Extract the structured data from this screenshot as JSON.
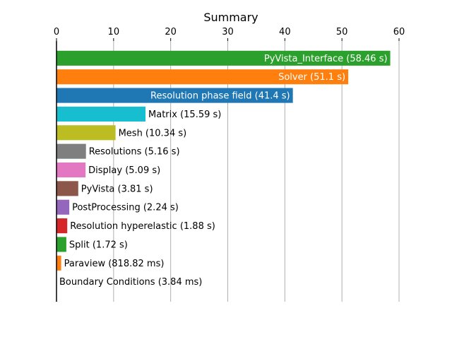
{
  "chart_data": {
    "type": "bar",
    "orientation": "horizontal",
    "title": "Summary",
    "xlim": [
      0,
      60
    ],
    "x_ticks": [
      0,
      10,
      20,
      30,
      40,
      50,
      60
    ],
    "x_axis_position": "top",
    "grid": "vertical",
    "bars": [
      {
        "category": "PyVista_Interface",
        "value": 58.46,
        "label": "PyVista_Interface (58.46 s)",
        "color": "#2ca02c",
        "label_inside": true
      },
      {
        "category": "Solver",
        "value": 51.1,
        "label": "Solver (51.1 s)",
        "color": "#ff7f0e",
        "label_inside": true
      },
      {
        "category": "Resolution phase field",
        "value": 41.4,
        "label": "Resolution phase field (41.4 s)",
        "color": "#1f77b4",
        "label_inside": true
      },
      {
        "category": "Matrix",
        "value": 15.59,
        "label": "Matrix (15.59 s)",
        "color": "#17becf",
        "label_inside": false
      },
      {
        "category": "Mesh",
        "value": 10.34,
        "label": "Mesh (10.34 s)",
        "color": "#bcbd22",
        "label_inside": false
      },
      {
        "category": "Resolutions",
        "value": 5.16,
        "label": "Resolutions (5.16 s)",
        "color": "#7f7f7f",
        "label_inside": false
      },
      {
        "category": "Display",
        "value": 5.09,
        "label": "Display (5.09 s)",
        "color": "#e377c2",
        "label_inside": false
      },
      {
        "category": "PyVista",
        "value": 3.81,
        "label": "PyVista (3.81 s)",
        "color": "#8c564b",
        "label_inside": false
      },
      {
        "category": "PostProcessing",
        "value": 2.24,
        "label": "PostProcessing (2.24 s)",
        "color": "#9467bd",
        "label_inside": false
      },
      {
        "category": "Resolution hyperelastic",
        "value": 1.88,
        "label": "Resolution hyperelastic (1.88 s)",
        "color": "#d62728",
        "label_inside": false
      },
      {
        "category": "Split",
        "value": 1.72,
        "label": "Split (1.72 s)",
        "color": "#2ca02c",
        "label_inside": false
      },
      {
        "category": "Paraview",
        "value": 0.81882,
        "label": "Paraview (818.82 ms)",
        "color": "#ff7f0e",
        "label_inside": false
      },
      {
        "category": "Boundary Conditions",
        "value": 0.00384,
        "label": "Boundary Conditions (3.84 ms)",
        "color": "#1f77b4",
        "label_inside": false
      }
    ]
  }
}
